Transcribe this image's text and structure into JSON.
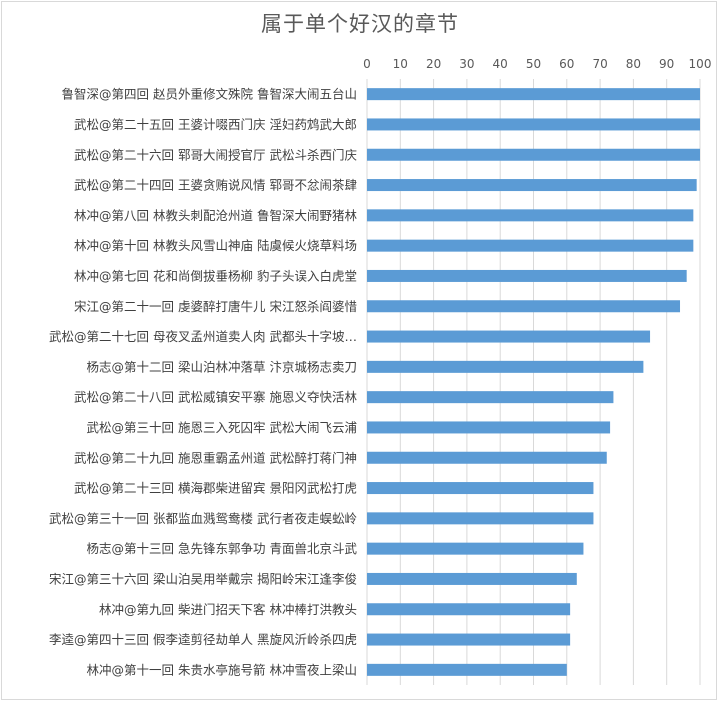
{
  "chart_data": {
    "type": "bar",
    "orientation": "horizontal",
    "title": "属于单个好汉的章节",
    "xlim": [
      0,
      100
    ],
    "x_ticks": [
      0,
      10,
      20,
      30,
      40,
      50,
      60,
      70,
      80,
      90,
      100
    ],
    "grid": true,
    "legend": "none",
    "bar_color": "#5b9bd5",
    "categories": [
      "鲁智深@第四回 赵员外重修文殊院 鲁智深大闹五台山",
      "武松@第二十五回 王婆计啜西门庆 淫妇药鸩武大郎",
      "武松@第二十六回 郓哥大闹授官厅 武松斗杀西门庆",
      "武松@第二十四回 王婆贪贿说风情 郓哥不忿闹茶肆",
      "林冲@第八回 林教头刺配沧州道 鲁智深大闹野猪林",
      "林冲@第十回 林教头风雪山神庙 陆虞候火烧草料场",
      "林冲@第七回 花和尚倒拔垂杨柳 豹子头误入白虎堂",
      "宋江@第二十一回 虔婆醉打唐牛儿 宋江怒杀阎婆惜",
      "武松@第二十七回 母夜叉孟州道卖人肉 武都头十字坡…",
      "杨志@第十二回 梁山泊林冲落草 汴京城杨志卖刀",
      "武松@第二十八回 武松威镇安平寨 施恩义夺快活林",
      "武松@第三十回 施恩三入死囚牢 武松大闹飞云浦",
      "武松@第二十九回 施恩重霸孟州道 武松醉打蒋门神",
      "武松@第二十三回 横海郡柴进留宾 景阳冈武松打虎",
      "武松@第三十一回 张都监血溅鸳鸯楼 武行者夜走蜈蚣岭",
      "杨志@第十三回 急先锋东郭争功 青面兽北京斗武",
      "宋江@第三十六回 梁山泊吴用举戴宗 揭阳岭宋江逢李俊",
      "林冲@第九回 柴进门招天下客 林冲棒打洪教头",
      "李逵@第四十三回 假李逵剪径劫单人 黑旋风沂岭杀四虎",
      "林冲@第十一回 朱贵水亭施号箭 林冲雪夜上梁山"
    ],
    "values": [
      100,
      100,
      100,
      99,
      98,
      98,
      96,
      94,
      85,
      83,
      74,
      73,
      72,
      68,
      68,
      65,
      63,
      61,
      61,
      60
    ]
  }
}
